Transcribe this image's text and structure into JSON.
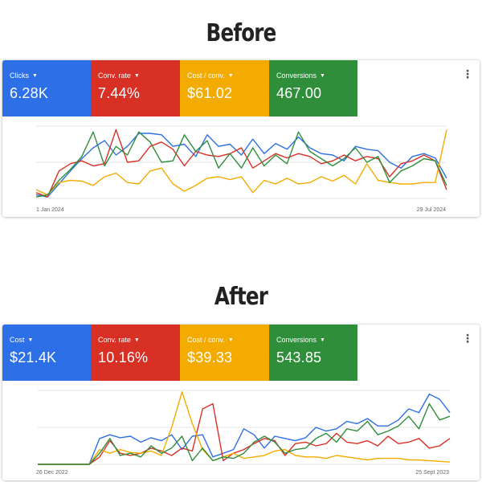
{
  "colors": {
    "blue": "#2d6fe6",
    "red": "#d93025",
    "yellow": "#f4ab00",
    "green": "#2e8e3a",
    "gridline": "#e3e3e3"
  },
  "before": {
    "heading": "Before",
    "tiles": [
      {
        "label": "Clicks",
        "value": "6.28K",
        "color": "#2d6fe6"
      },
      {
        "label": "Conv. rate",
        "value": "7.44%",
        "color": "#d93025"
      },
      {
        "label": "Cost / conv.",
        "value": "$61.02",
        "color": "#f4ab00"
      },
      {
        "label": "Conversions",
        "value": "467.00",
        "color": "#2e8e3a"
      }
    ],
    "more_icon": "⋮",
    "x_start_label": "1 Jan 2024",
    "x_end_label": "29 Jul 2024",
    "chart_data": {
      "type": "line",
      "x_range": [
        "1 Jan 2024",
        "29 Jul 2024"
      ],
      "y_range": [
        0,
        100
      ],
      "grid": true,
      "series": [
        {
          "color": "#2d6fe6",
          "values": [
            5,
            2,
            20,
            38,
            55,
            70,
            80,
            60,
            72,
            90,
            90,
            88,
            72,
            75,
            58,
            88,
            72,
            75,
            60,
            82,
            62,
            76,
            68,
            85,
            70,
            62,
            60,
            52,
            72,
            68,
            66,
            50,
            42,
            58,
            62,
            56,
            28
          ]
        },
        {
          "color": "#d93025",
          "values": [
            8,
            2,
            38,
            48,
            52,
            45,
            48,
            95,
            50,
            52,
            72,
            78,
            68,
            45,
            65,
            60,
            58,
            62,
            70,
            42,
            52,
            62,
            56,
            62,
            58,
            48,
            52,
            60,
            52,
            58,
            55,
            30,
            48,
            52,
            60,
            52,
            12
          ]
        },
        {
          "color": "#f4ab00",
          "values": [
            12,
            5,
            22,
            25,
            24,
            18,
            30,
            35,
            22,
            20,
            38,
            42,
            20,
            10,
            18,
            28,
            30,
            26,
            30,
            8,
            25,
            20,
            28,
            20,
            22,
            30,
            24,
            32,
            20,
            48,
            25,
            22,
            20,
            20,
            22,
            22,
            95
          ]
        },
        {
          "color": "#2e8e3a",
          "values": [
            2,
            5,
            25,
            40,
            58,
            92,
            45,
            72,
            60,
            92,
            78,
            50,
            52,
            88,
            65,
            80,
            42,
            62,
            42,
            70,
            45,
            60,
            48,
            92,
            65,
            55,
            45,
            55,
            70,
            50,
            58,
            22,
            38,
            45,
            55,
            52,
            18
          ]
        }
      ]
    }
  },
  "after": {
    "heading": "After",
    "tiles": [
      {
        "label": "Cost",
        "value": "$21.4K",
        "color": "#2d6fe6"
      },
      {
        "label": "Conv. rate",
        "value": "10.16%",
        "color": "#d93025"
      },
      {
        "label": "Cost / conv.",
        "value": "$39.33",
        "color": "#f4ab00"
      },
      {
        "label": "Conversions",
        "value": "543.85",
        "color": "#2e8e3a"
      }
    ],
    "more_icon": "⋮",
    "x_start_label": "26 Dec 2022",
    "x_end_label": "25 Sept 2023",
    "chart_data": {
      "type": "line",
      "x_range": [
        "26 Dec 2022",
        "25 Sept 2023"
      ],
      "y_range": [
        0,
        100
      ],
      "grid": true,
      "series": [
        {
          "color": "#2d6fe6",
          "values": [
            0,
            0,
            0,
            0,
            0,
            0,
            35,
            40,
            36,
            38,
            30,
            36,
            32,
            40,
            20,
            38,
            40,
            10,
            15,
            20,
            48,
            40,
            22,
            38,
            35,
            32,
            36,
            50,
            45,
            48,
            58,
            55,
            62,
            52,
            52,
            60,
            75,
            70,
            95,
            88,
            70
          ]
        },
        {
          "color": "#d93025",
          "values": [
            0,
            0,
            0,
            0,
            0,
            0,
            10,
            32,
            15,
            12,
            15,
            22,
            18,
            12,
            22,
            18,
            75,
            82,
            5,
            15,
            20,
            28,
            35,
            32,
            12,
            28,
            30,
            25,
            28,
            42,
            30,
            28,
            32,
            25,
            38,
            28,
            30,
            35,
            22,
            25,
            35
          ]
        },
        {
          "color": "#f4ab00",
          "values": [
            0,
            0,
            0,
            0,
            0,
            0,
            20,
            15,
            20,
            16,
            15,
            18,
            12,
            50,
            98,
            55,
            20,
            5,
            10,
            15,
            8,
            10,
            12,
            18,
            20,
            12,
            10,
            10,
            8,
            12,
            10,
            8,
            6,
            8,
            8,
            8,
            6,
            6,
            5,
            4,
            3
          ]
        },
        {
          "color": "#2e8e3a",
          "values": [
            0,
            0,
            0,
            0,
            0,
            0,
            15,
            35,
            12,
            15,
            10,
            25,
            15,
            22,
            38,
            5,
            22,
            5,
            10,
            8,
            15,
            30,
            38,
            30,
            15,
            20,
            22,
            35,
            42,
            30,
            48,
            45,
            58,
            40,
            45,
            52,
            65,
            48,
            82,
            60,
            65
          ]
        }
      ]
    }
  }
}
